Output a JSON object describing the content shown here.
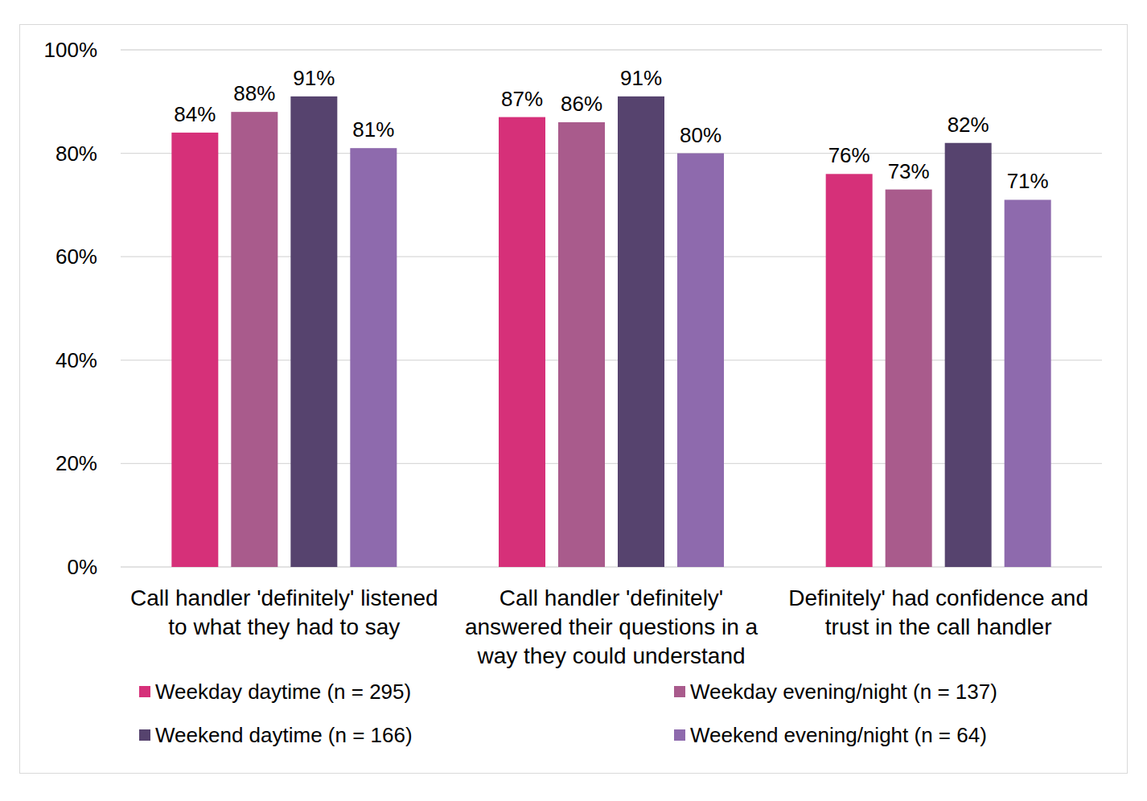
{
  "chart_data": {
    "type": "bar",
    "categories": [
      "Call handler 'definitely' listened to what they had to say",
      "Call handler 'definitely' answered their questions in a way they could understand",
      "Definitely' had confidence and trust in the call handler"
    ],
    "series": [
      {
        "name": "Weekday daytime (n = 295)",
        "color": "#d63079",
        "values": [
          84,
          87,
          76
        ],
        "value_labels": [
          "84%",
          "87%",
          "76%"
        ]
      },
      {
        "name": "Weekday evening/night (n = 137)",
        "color": "#a95b8c",
        "values": [
          88,
          86,
          73
        ],
        "value_labels": [
          "88%",
          "86%",
          "73%"
        ]
      },
      {
        "name": "Weekend daytime (n = 166)",
        "color": "#56436e",
        "values": [
          91,
          91,
          82
        ],
        "value_labels": [
          "91%",
          "91%",
          "82%"
        ]
      },
      {
        "name": "Weekend evening/night (n = 64)",
        "color": "#8e6aad",
        "values": [
          81,
          80,
          71
        ],
        "value_labels": [
          "81%",
          "80%",
          "71%"
        ]
      }
    ],
    "ylim": [
      0,
      100
    ],
    "yticks": [
      {
        "value": 0,
        "label": "0%"
      },
      {
        "value": 20,
        "label": "20%"
      },
      {
        "value": 40,
        "label": "40%"
      },
      {
        "value": 60,
        "label": "60%"
      },
      {
        "value": 80,
        "label": "80%"
      },
      {
        "value": 100,
        "label": "100%"
      }
    ],
    "grid": true,
    "legend": "bottom",
    "data_labels": true
  }
}
